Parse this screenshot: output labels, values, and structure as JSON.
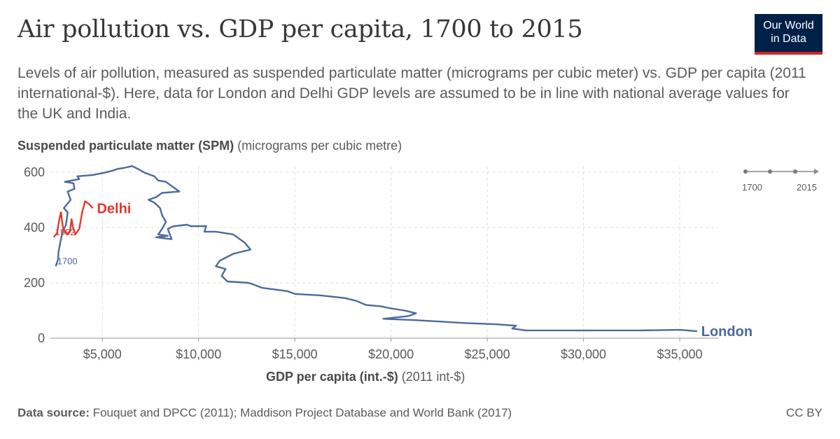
{
  "header": {
    "title": "Air pollution vs. GDP per capita, 1700 to 2015",
    "subtitle": "Levels of air pollution, measured as suspended particulate matter (micrograms per cubic meter) vs. GDP per capita (2011 international-$). Here, data for London and Delhi GDP levels are assumed to be in line with national average values for the UK and India.",
    "logo_line1": "Our World",
    "logo_line2": "in Data"
  },
  "footer": {
    "source_label": "Data source:",
    "source_text": "Fouquet and DPCC (2011); Maddison Project Database and World Bank (2017)",
    "license": "CC BY"
  },
  "chart_data": {
    "type": "line",
    "ylabel_bold": "Suspended particulate matter (SPM)",
    "ylabel_unit": "(micrograms per cubic metre)",
    "xlabel_bold": "GDP per capita (int.-$)",
    "xlabel_unit": "(2011 int-$)",
    "xlim": [
      2300,
      37000
    ],
    "ylim": [
      0,
      620
    ],
    "x_ticks": [
      5000,
      10000,
      15000,
      20000,
      25000,
      30000,
      35000
    ],
    "x_tick_labels": [
      "$5,000",
      "$10,000",
      "$15,000",
      "$20,000",
      "$25,000",
      "$30,000",
      "$35,000"
    ],
    "y_ticks": [
      0,
      200,
      400,
      600
    ],
    "y_tick_labels": [
      "0",
      "200",
      "400",
      "600"
    ],
    "grid": true,
    "timeline": {
      "start": "1700",
      "end": "2015"
    },
    "colors": {
      "London": "#4c6a9c",
      "Delhi": "#e0392e"
    },
    "series": [
      {
        "name": "London",
        "start_label": "1700",
        "points": [
          [
            2580,
            260
          ],
          [
            2700,
            285
          ],
          [
            2720,
            310
          ],
          [
            2800,
            340
          ],
          [
            2880,
            368
          ],
          [
            2950,
            390
          ],
          [
            3100,
            408
          ],
          [
            3150,
            430
          ],
          [
            3200,
            455
          ],
          [
            3000,
            470
          ],
          [
            3350,
            500
          ],
          [
            3200,
            530
          ],
          [
            3550,
            540
          ],
          [
            3500,
            560
          ],
          [
            3050,
            565
          ],
          [
            3800,
            575
          ],
          [
            3700,
            585
          ],
          [
            4500,
            590
          ],
          [
            5100,
            598
          ],
          [
            5500,
            605
          ],
          [
            5800,
            612
          ],
          [
            6100,
            615
          ],
          [
            6550,
            622
          ],
          [
            6900,
            610
          ],
          [
            7200,
            598
          ],
          [
            7700,
            585
          ],
          [
            7900,
            570
          ],
          [
            8300,
            565
          ],
          [
            8500,
            555
          ],
          [
            8800,
            540
          ],
          [
            9000,
            530
          ],
          [
            8100,
            525
          ],
          [
            7800,
            510
          ],
          [
            7400,
            500
          ],
          [
            7700,
            490
          ],
          [
            8000,
            470
          ],
          [
            8100,
            445
          ],
          [
            8300,
            420
          ],
          [
            8100,
            395
          ],
          [
            7900,
            375
          ],
          [
            8400,
            370
          ],
          [
            7800,
            365
          ],
          [
            8300,
            360
          ],
          [
            8600,
            358
          ],
          [
            8400,
            395
          ],
          [
            8700,
            405
          ],
          [
            9400,
            410
          ],
          [
            9600,
            405
          ],
          [
            10400,
            405
          ],
          [
            10300,
            385
          ],
          [
            10900,
            385
          ],
          [
            11800,
            375
          ],
          [
            12400,
            345
          ],
          [
            12700,
            320
          ],
          [
            11800,
            305
          ],
          [
            11100,
            280
          ],
          [
            10900,
            260
          ],
          [
            11400,
            250
          ],
          [
            11200,
            225
          ],
          [
            11500,
            205
          ],
          [
            12600,
            200
          ],
          [
            13000,
            190
          ],
          [
            13300,
            182
          ],
          [
            14600,
            170
          ],
          [
            15000,
            160
          ],
          [
            16300,
            155
          ],
          [
            17600,
            145
          ],
          [
            18200,
            135
          ],
          [
            18700,
            120
          ],
          [
            19500,
            115
          ],
          [
            19800,
            110
          ],
          [
            20700,
            100
          ],
          [
            21300,
            90
          ],
          [
            20900,
            80
          ],
          [
            19600,
            70
          ],
          [
            21300,
            65
          ],
          [
            23800,
            55
          ],
          [
            25500,
            50
          ],
          [
            26500,
            45
          ],
          [
            26300,
            35
          ],
          [
            27000,
            28
          ],
          [
            29500,
            28
          ],
          [
            31000,
            28
          ],
          [
            33000,
            28
          ],
          [
            35000,
            30
          ],
          [
            35900,
            25
          ]
        ]
      },
      {
        "name": "Delhi",
        "start_label": "1992",
        "points": [
          [
            2470,
            365
          ],
          [
            2650,
            380
          ],
          [
            2750,
            425
          ],
          [
            2850,
            455
          ],
          [
            2950,
            400
          ],
          [
            3150,
            375
          ],
          [
            3320,
            385
          ],
          [
            3400,
            430
          ],
          [
            3480,
            400
          ],
          [
            3600,
            375
          ],
          [
            3800,
            395
          ],
          [
            3950,
            455
          ],
          [
            4100,
            495
          ],
          [
            4300,
            485
          ],
          [
            4500,
            470
          ]
        ]
      }
    ]
  }
}
